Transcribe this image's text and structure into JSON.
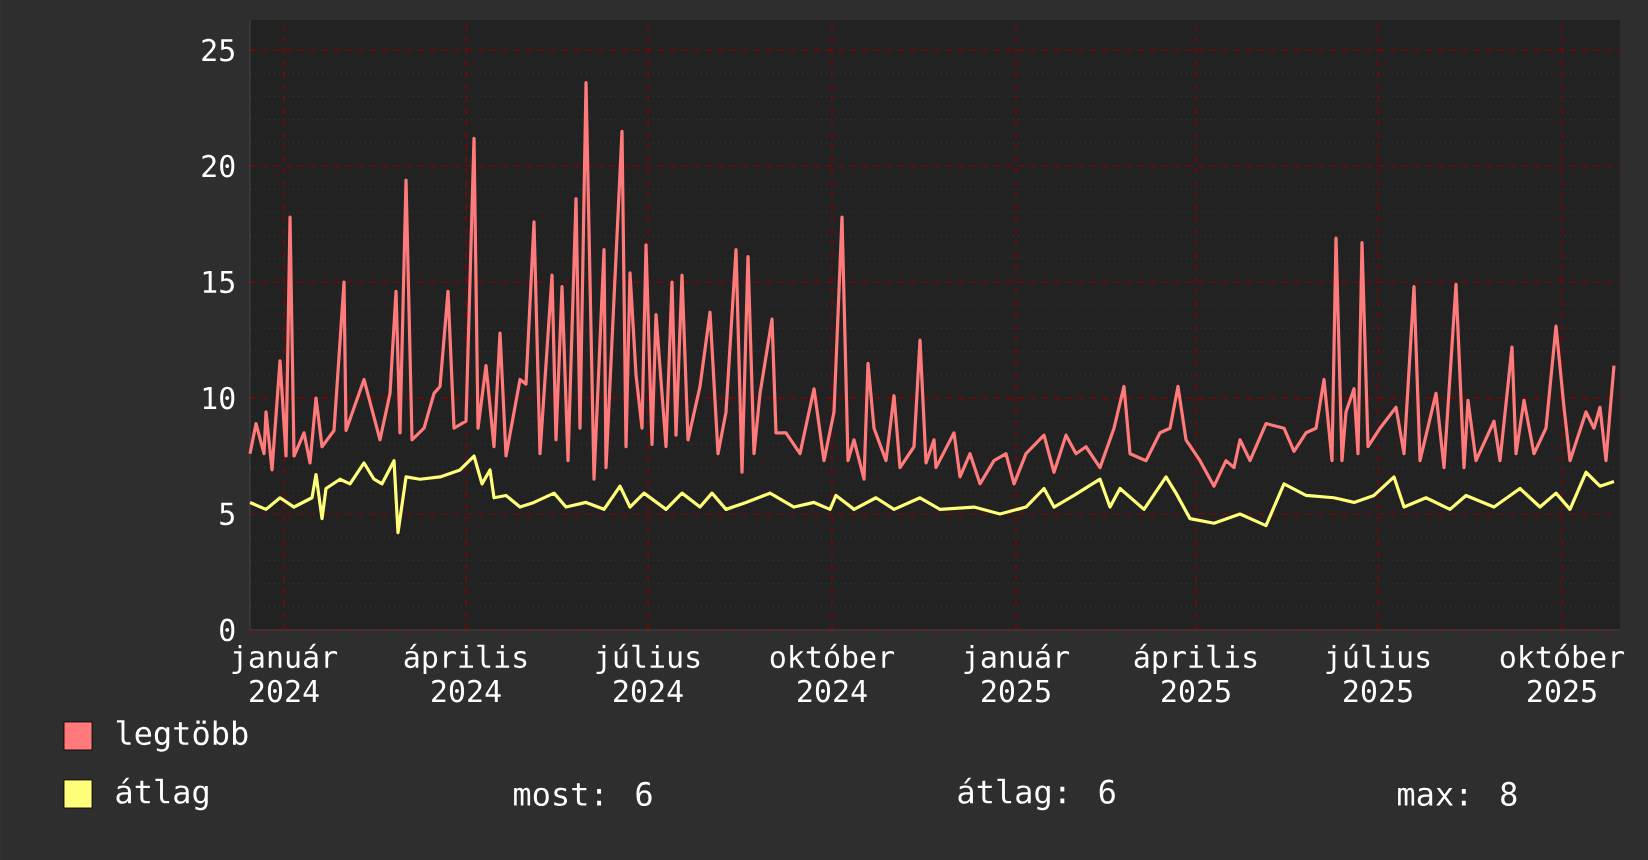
{
  "chart_data": {
    "type": "line",
    "xlim": [
      "2023-12-15",
      "2025-10-30"
    ],
    "xticks": [
      {
        "value": "2024-01-01",
        "label": "január"
      },
      {
        "value": "2024-04-01",
        "label": "április"
      },
      {
        "value": "2024-07-01",
        "label": "július"
      },
      {
        "value": "2024-10-01",
        "label": "október"
      },
      {
        "value": "2025-01-01",
        "label": "január"
      },
      {
        "value": "2025-04-01",
        "label": "április"
      },
      {
        "value": "2025-07-01",
        "label": "július"
      },
      {
        "value": "2025-10-01",
        "label": "október"
      }
    ],
    "x2lim": [
      "2023-12-15",
      "2025-10-30"
    ],
    "x2ticks": [
      {
        "value": "2024-01-01",
        "label": "2024"
      },
      {
        "value": "2024-04-01",
        "label": "2024"
      },
      {
        "value": "2024-07-01",
        "label": "2024"
      },
      {
        "value": "2024-10-01",
        "label": "2024"
      },
      {
        "value": "2025-01-01",
        "label": "2025"
      },
      {
        "value": "2025-04-01",
        "label": "2025"
      },
      {
        "value": "2025-07-01",
        "label": "2025"
      },
      {
        "value": "2025-10-01",
        "label": "2025"
      }
    ],
    "ylim": [
      0,
      26.3
    ],
    "yticks": [
      0,
      5,
      10,
      15,
      20,
      25
    ],
    "grid": true,
    "legend": "bottom",
    "marker": "none",
    "line_style": "solid",
    "annotations": [
      "most: 6",
      "átlag: 6",
      "max: 8"
    ],
    "series": [
      {
        "name": "legtöbb",
        "color": "#ff7b7b",
        "x": [
          "2023-12-15",
          "2023-12-18",
          "2023-12-22",
          "2023-12-23",
          "2023-12-26",
          "2023-12-30",
          "2024-01-02",
          "2024-01-04",
          "2024-01-06",
          "2024-01-11",
          "2024-01-14",
          "2024-01-17",
          "2024-01-20",
          "2024-01-26",
          "2024-01-31",
          "2024-02-01",
          "2024-02-10",
          "2024-02-18",
          "2024-02-23",
          "2024-02-26",
          "2024-02-28",
          "2024-03-02",
          "2024-03-05",
          "2024-03-11",
          "2024-03-16",
          "2024-03-19",
          "2024-03-23",
          "2024-03-26",
          "2024-04-01",
          "2024-04-05",
          "2024-04-07",
          "2024-04-11",
          "2024-04-15",
          "2024-04-18",
          "2024-04-21",
          "2024-04-28",
          "2024-05-01",
          "2024-05-05",
          "2024-05-08",
          "2024-05-14",
          "2024-05-16",
          "2024-05-19",
          "2024-05-22",
          "2024-05-26",
          "2024-05-28",
          "2024-05-31",
          "2024-06-04",
          "2024-06-09",
          "2024-06-10",
          "2024-06-14",
          "2024-06-18",
          "2024-06-20",
          "2024-06-22",
          "2024-06-25",
          "2024-06-28",
          "2024-06-30",
          "2024-07-03",
          "2024-07-05",
          "2024-07-10",
          "2024-07-13",
          "2024-07-15",
          "2024-07-18",
          "2024-07-21",
          "2024-07-27",
          "2024-08-01",
          "2024-08-05",
          "2024-08-09",
          "2024-08-14",
          "2024-08-17",
          "2024-08-20",
          "2024-08-23",
          "2024-08-26",
          "2024-09-01",
          "2024-09-03",
          "2024-09-08",
          "2024-09-15",
          "2024-09-22",
          "2024-09-27",
          "2024-10-02",
          "2024-10-06",
          "2024-10-09",
          "2024-10-12",
          "2024-10-17",
          "2024-10-19",
          "2024-10-22",
          "2024-10-28",
          "2024-11-01",
          "2024-11-04",
          "2024-11-11",
          "2024-11-14",
          "2024-11-17",
          "2024-11-21",
          "2024-11-22",
          "2024-12-01",
          "2024-12-04",
          "2024-12-09",
          "2024-12-14",
          "2024-12-21",
          "2024-12-27",
          "2024-12-31",
          "2025-01-06",
          "2025-01-15",
          "2025-01-20",
          "2025-01-26",
          "2025-01-31",
          "2025-02-05",
          "2025-02-12",
          "2025-02-19",
          "2025-02-24",
          "2025-02-27",
          "2025-03-07",
          "2025-03-14",
          "2025-03-19",
          "2025-03-23",
          "2025-03-27",
          "2025-04-03",
          "2025-04-10",
          "2025-04-16",
          "2025-04-20",
          "2025-04-23",
          "2025-04-28",
          "2025-05-06",
          "2025-05-15",
          "2025-05-20",
          "2025-05-26",
          "2025-05-31",
          "2025-06-04",
          "2025-06-08",
          "2025-06-10",
          "2025-06-13",
          "2025-06-15",
          "2025-06-19",
          "2025-06-21",
          "2025-06-23",
          "2025-06-26",
          "2025-07-02",
          "2025-07-10",
          "2025-07-14",
          "2025-07-19",
          "2025-07-22",
          "2025-07-30",
          "2025-08-03",
          "2025-08-09",
          "2025-08-13",
          "2025-08-15",
          "2025-08-19",
          "2025-08-28",
          "2025-08-31",
          "2025-09-06",
          "2025-09-08",
          "2025-09-12",
          "2025-09-17",
          "2025-09-23",
          "2025-09-28",
          "2025-10-02",
          "2025-10-05",
          "2025-10-13",
          "2025-10-17",
          "2025-10-20",
          "2025-10-23",
          "2025-10-25",
          "2025-10-27"
        ],
        "values": [
          7.6,
          8.9,
          7.6,
          9.4,
          6.9,
          11.6,
          7.5,
          17.8,
          7.5,
          8.5,
          7.2,
          10.0,
          7.9,
          8.6,
          15.0,
          8.6,
          10.8,
          8.2,
          10.2,
          14.6,
          8.5,
          19.4,
          8.2,
          8.7,
          10.2,
          10.5,
          14.6,
          8.7,
          9.0,
          21.2,
          8.7,
          11.4,
          7.9,
          12.8,
          7.5,
          10.8,
          10.6,
          17.6,
          7.6,
          15.3,
          8.2,
          14.8,
          7.3,
          18.6,
          8.7,
          23.6,
          6.5,
          16.4,
          7.0,
          14.3,
          21.5,
          7.9,
          15.4,
          11.0,
          8.7,
          16.6,
          8.0,
          13.6,
          7.9,
          15.0,
          8.4,
          15.3,
          8.2,
          10.5,
          13.7,
          7.6,
          9.4,
          16.4,
          6.8,
          16.1,
          7.6,
          10.2,
          13.4,
          8.5,
          8.5,
          7.6,
          10.4,
          7.3,
          9.4,
          17.8,
          7.3,
          8.2,
          6.5,
          11.5,
          8.7,
          7.3,
          10.1,
          7.0,
          7.9,
          12.5,
          7.2,
          8.2,
          7.0,
          8.5,
          6.6,
          7.6,
          6.3,
          7.3,
          7.6,
          6.3,
          7.6,
          8.4,
          6.8,
          8.4,
          7.6,
          7.9,
          7.0,
          8.7,
          10.5,
          7.6,
          7.3,
          8.5,
          8.7,
          10.5,
          8.2,
          7.3,
          6.2,
          7.3,
          7.0,
          8.2,
          7.3,
          8.9,
          8.7,
          7.7,
          8.5,
          8.7,
          10.8,
          7.3,
          16.9,
          7.3,
          9.4,
          10.4,
          7.6,
          16.7,
          7.9,
          8.7,
          9.6,
          7.6,
          14.8,
          7.3,
          10.2,
          7.0,
          14.9,
          7.0,
          9.9,
          7.3,
          9.0,
          7.3,
          12.2,
          7.6,
          9.9,
          7.6,
          8.7,
          13.1,
          9.6,
          7.3,
          9.4,
          8.7,
          9.6,
          7.3,
          9.4,
          11.4
        ]
      },
      {
        "name": "átlag",
        "color": "#ffff7a",
        "x": [
          "2023-12-15",
          "2023-12-23",
          "2023-12-30",
          "2024-01-06",
          "2024-01-15",
          "2024-01-17",
          "2024-01-20",
          "2024-01-22",
          "2024-01-29",
          "2024-02-03",
          "2024-02-10",
          "2024-02-15",
          "2024-02-19",
          "2024-02-25",
          "2024-02-27",
          "2024-03-02",
          "2024-03-09",
          "2024-03-19",
          "2024-03-29",
          "2024-04-05",
          "2024-04-09",
          "2024-04-13",
          "2024-04-15",
          "2024-04-21",
          "2024-04-28",
          "2024-05-05",
          "2024-05-15",
          "2024-05-21",
          "2024-05-31",
          "2024-06-09",
          "2024-06-17",
          "2024-06-22",
          "2024-06-29",
          "2024-07-10",
          "2024-07-18",
          "2024-07-27",
          "2024-08-02",
          "2024-08-09",
          "2024-08-19",
          "2024-08-31",
          "2024-09-12",
          "2024-09-22",
          "2024-09-30",
          "2024-10-03",
          "2024-10-12",
          "2024-10-23",
          "2024-11-01",
          "2024-11-14",
          "2024-11-24",
          "2024-12-11",
          "2024-12-24",
          "2025-01-06",
          "2025-01-15",
          "2025-01-20",
          "2025-01-30",
          "2025-02-12",
          "2025-02-17",
          "2025-02-22",
          "2025-03-06",
          "2025-03-17",
          "2025-03-22",
          "2025-03-29",
          "2025-04-10",
          "2025-04-23",
          "2025-05-06",
          "2025-05-15",
          "2025-05-26",
          "2025-06-09",
          "2025-06-19",
          "2025-06-29",
          "2025-07-09",
          "2025-07-14",
          "2025-07-25",
          "2025-08-06",
          "2025-08-14",
          "2025-08-28",
          "2025-09-10",
          "2025-09-20",
          "2025-09-28",
          "2025-10-05",
          "2025-10-13",
          "2025-10-20",
          "2025-10-27"
        ],
        "values": [
          5.5,
          5.2,
          5.7,
          5.3,
          5.7,
          6.7,
          4.8,
          6.1,
          6.5,
          6.3,
          7.2,
          6.5,
          6.3,
          7.3,
          4.2,
          6.6,
          6.5,
          6.6,
          6.9,
          7.5,
          6.3,
          6.9,
          5.7,
          5.8,
          5.3,
          5.5,
          5.9,
          5.3,
          5.5,
          5.2,
          6.2,
          5.3,
          5.9,
          5.2,
          5.9,
          5.3,
          5.9,
          5.2,
          5.5,
          5.9,
          5.3,
          5.5,
          5.2,
          5.8,
          5.2,
          5.7,
          5.2,
          5.7,
          5.2,
          5.3,
          5.0,
          5.3,
          6.1,
          5.3,
          5.8,
          6.5,
          5.3,
          6.1,
          5.2,
          6.6,
          5.9,
          4.8,
          4.6,
          5.0,
          4.5,
          6.3,
          5.8,
          5.7,
          5.5,
          5.8,
          6.6,
          5.3,
          5.7,
          5.2,
          5.8,
          5.3,
          6.1,
          5.3,
          5.9,
          5.2,
          6.8,
          6.2,
          6.4
        ]
      }
    ]
  }
}
